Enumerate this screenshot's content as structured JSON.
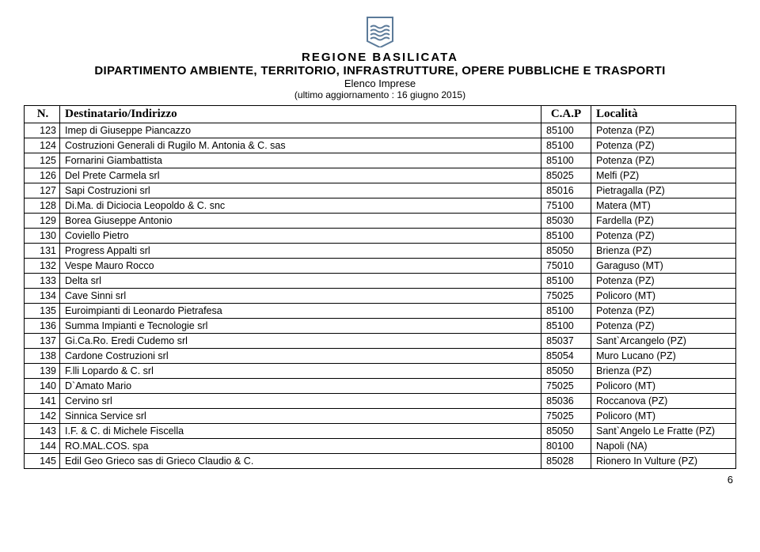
{
  "header": {
    "region": "REGIONE   BASILICATA",
    "department": "DIPARTIMENTO AMBIENTE, TERRITORIO, INFRASTRUTTURE, OPERE PUBBLICHE  E TRASPORTI",
    "subtitle1": "Elenco Imprese",
    "subtitle2": "(ultimo aggiornamento : 16 giugno 2015)"
  },
  "table": {
    "headers": {
      "n": "N.",
      "dest": "Destinatario/Indirizzo",
      "cap": "C.A.P",
      "loc": "Località"
    },
    "rows": [
      {
        "n": "123",
        "dest": "Imep di Giuseppe Piancazzo",
        "cap": "85100",
        "loc": "Potenza (PZ)"
      },
      {
        "n": "124",
        "dest": "Costruzioni Generali di Rugilo M. Antonia & C. sas",
        "cap": "85100",
        "loc": "Potenza (PZ)"
      },
      {
        "n": "125",
        "dest": "Fornarini Giambattista",
        "cap": "85100",
        "loc": "Potenza (PZ)"
      },
      {
        "n": "126",
        "dest": "Del Prete Carmela srl",
        "cap": "85025",
        "loc": "Melfi (PZ)"
      },
      {
        "n": "127",
        "dest": "Sapi Costruzioni srl",
        "cap": "85016",
        "loc": "Pietragalla (PZ)"
      },
      {
        "n": "128",
        "dest": "Di.Ma. di Diciocia Leopoldo & C. snc",
        "cap": "75100",
        "loc": "Matera (MT)"
      },
      {
        "n": "129",
        "dest": "Borea Giuseppe Antonio",
        "cap": "85030",
        "loc": "Fardella (PZ)"
      },
      {
        "n": "130",
        "dest": "Coviello Pietro",
        "cap": "85100",
        "loc": "Potenza (PZ)"
      },
      {
        "n": "131",
        "dest": "Progress Appalti srl",
        "cap": "85050",
        "loc": "Brienza (PZ)"
      },
      {
        "n": "132",
        "dest": "Vespe Mauro Rocco",
        "cap": "75010",
        "loc": "Garaguso (MT)"
      },
      {
        "n": "133",
        "dest": "Delta srl",
        "cap": "85100",
        "loc": "Potenza (PZ)"
      },
      {
        "n": "134",
        "dest": "Cave Sinni srl",
        "cap": "75025",
        "loc": "Policoro (MT)"
      },
      {
        "n": "135",
        "dest": "Euroimpianti di Leonardo Pietrafesa",
        "cap": "85100",
        "loc": "Potenza (PZ)"
      },
      {
        "n": "136",
        "dest": "Summa Impianti e Tecnologie srl",
        "cap": "85100",
        "loc": "Potenza (PZ)"
      },
      {
        "n": "137",
        "dest": "Gi.Ca.Ro. Eredi Cudemo srl",
        "cap": "85037",
        "loc": "Sant`Arcangelo (PZ)"
      },
      {
        "n": "138",
        "dest": "Cardone Costruzioni srl",
        "cap": "85054",
        "loc": "Muro Lucano (PZ)"
      },
      {
        "n": "139",
        "dest": "F.lli Lopardo & C. srl",
        "cap": "85050",
        "loc": "Brienza (PZ)"
      },
      {
        "n": "140",
        "dest": "D`Amato Mario",
        "cap": "75025",
        "loc": "Policoro (MT)"
      },
      {
        "n": "141",
        "dest": "Cervino srl",
        "cap": "85036",
        "loc": "Roccanova (PZ)"
      },
      {
        "n": "142",
        "dest": "Sinnica Service srl",
        "cap": "75025",
        "loc": "Policoro (MT)"
      },
      {
        "n": "143",
        "dest": "I.F. & C. di Michele Fiscella",
        "cap": "85050",
        "loc": "Sant`Angelo Le Fratte (PZ)"
      },
      {
        "n": "144",
        "dest": "RO.MAL.COS. spa",
        "cap": "80100",
        "loc": "Napoli (NA)"
      },
      {
        "n": "145",
        "dest": "Edil Geo Grieco sas di Grieco Claudio & C.",
        "cap": "85028",
        "loc": "Rionero In Vulture (PZ)"
      }
    ]
  },
  "page_number": "6",
  "logo_colors": {
    "border": "#5b7a99",
    "wave": "#5b7a99",
    "bg": "#ffffff"
  }
}
